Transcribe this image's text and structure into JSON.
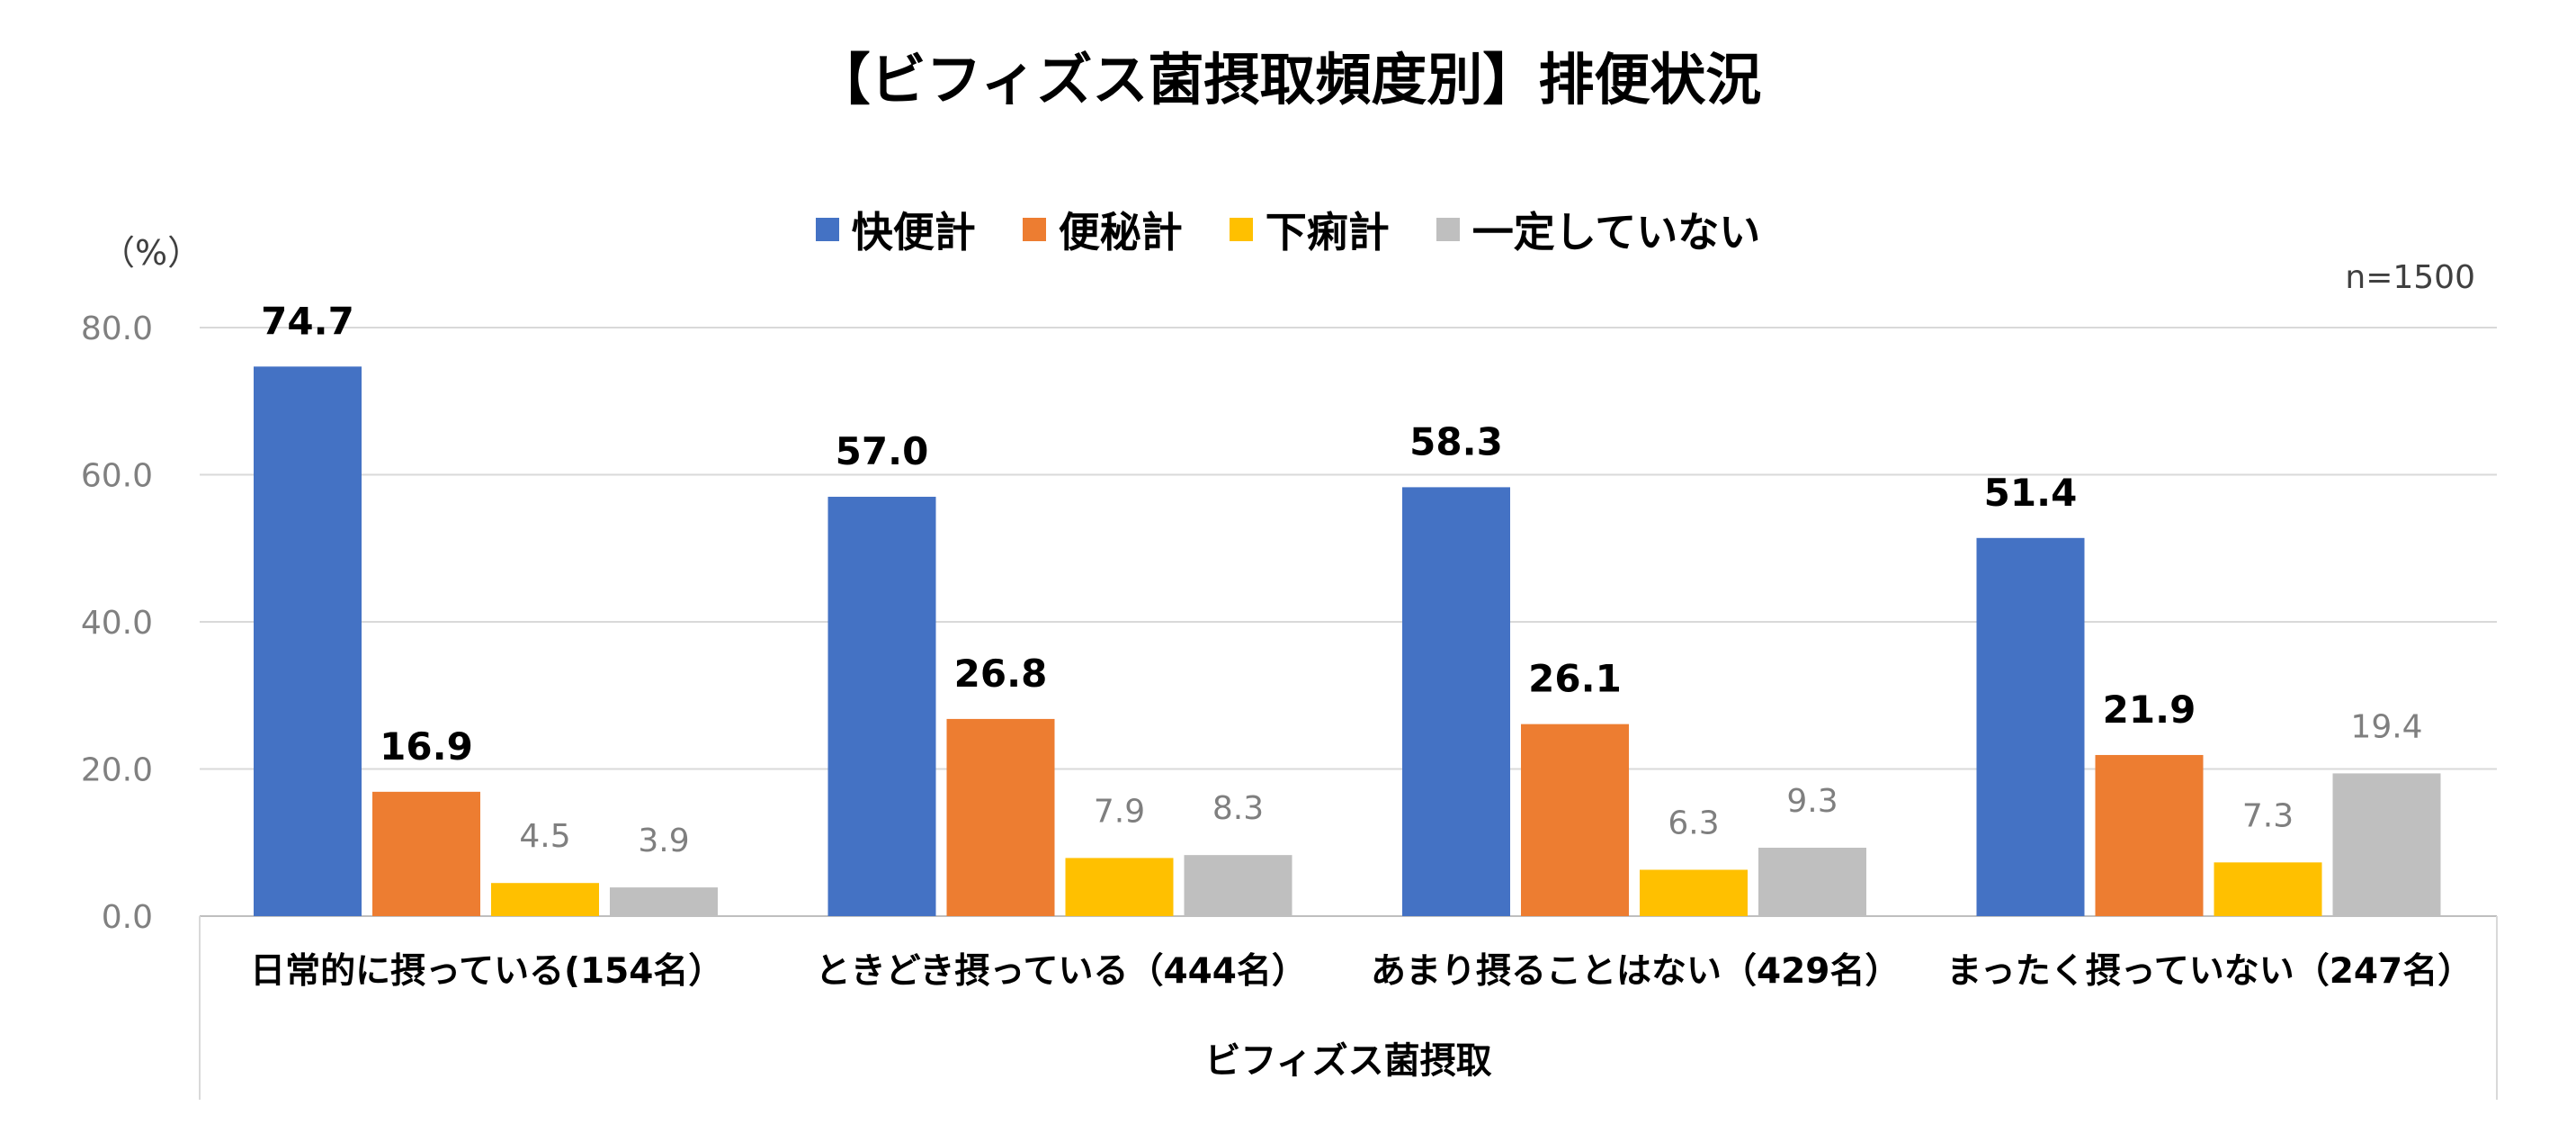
{
  "chart_data": {
    "type": "bar",
    "title": "【ビフィズス菌摂取頻度別】排便状況",
    "unit_label": "（%）",
    "note": "n=1500",
    "xlabel": "ビフィズス菌摂取",
    "categories": [
      "日常的に摂っている(154名）",
      "ときどき摂っている（444名）",
      "あまり摂ることはない（429名）",
      "まったく摂っていない（247名）"
    ],
    "series": [
      {
        "name": "快便計",
        "color": "#4472c4",
        "values": [
          74.7,
          57.0,
          58.3,
          51.4
        ],
        "label_style": "bold"
      },
      {
        "name": "便秘計",
        "color": "#ed7d31",
        "values": [
          16.9,
          26.8,
          26.1,
          21.9
        ],
        "label_style": "bold"
      },
      {
        "name": "下痢計",
        "color": "#ffc000",
        "values": [
          4.5,
          7.9,
          6.3,
          7.3
        ],
        "label_style": "plain"
      },
      {
        "name": "一定していない",
        "color": "#bfbfbf",
        "values": [
          3.9,
          8.3,
          9.3,
          19.4
        ],
        "label_style": "plain"
      }
    ],
    "ylim": [
      0,
      80
    ],
    "yticks": [
      "0.0",
      "20.0",
      "40.0",
      "60.0",
      "80.0"
    ],
    "grid": true,
    "legend_position": "top-center"
  }
}
